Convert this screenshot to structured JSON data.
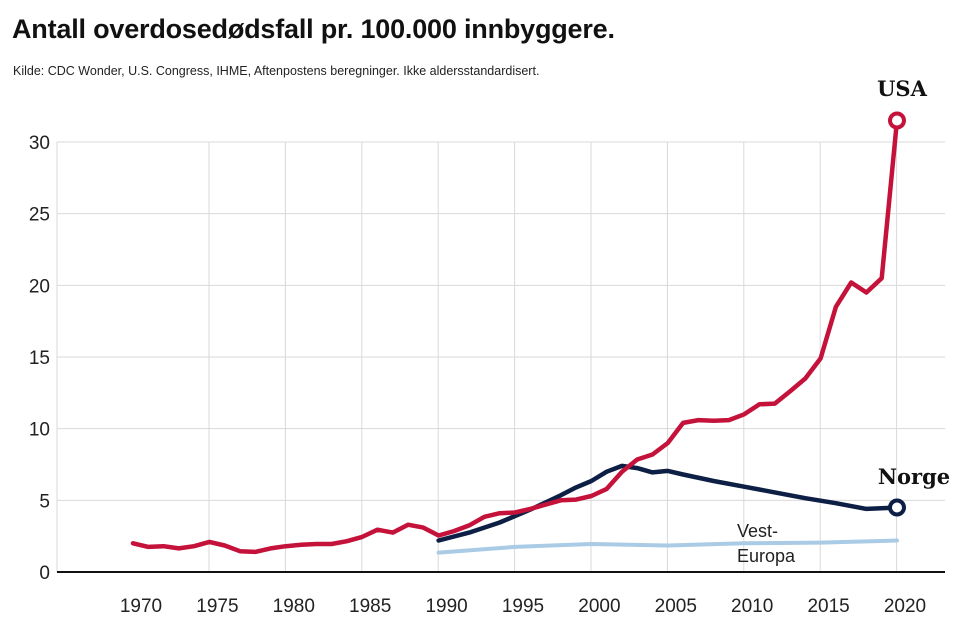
{
  "title": "Antall overdosedødsfall pr. 100.000 innbyggere.",
  "subtitle": "Kilde: CDC Wonder, U.S. Congress, IHME, Aftenpostens beregninger. Ikke aldersstandardisert.",
  "colors": {
    "usa": "#c4123a",
    "norge": "#0d1f45",
    "vest_europa": "#a9cbe6",
    "grid": "#d9d9d9",
    "axis": "#111111"
  },
  "chart_data": {
    "type": "line",
    "title": "Antall overdosedødsfall pr. 100.000 innbyggere.",
    "xlabel": "",
    "ylabel": "",
    "xlim": [
      1965,
      2021
    ],
    "ylim": [
      0,
      32
    ],
    "x_ticks": [
      1970,
      1975,
      1980,
      1985,
      1990,
      1995,
      2000,
      2005,
      2010,
      2015,
      2020
    ],
    "y_ticks": [
      0,
      5,
      10,
      15,
      20,
      25,
      30
    ],
    "grid": true,
    "series": [
      {
        "name": "USA",
        "color": "#c4123a",
        "x": [
          1970,
          1971,
          1972,
          1973,
          1974,
          1975,
          1976,
          1977,
          1978,
          1979,
          1980,
          1981,
          1982,
          1983,
          1984,
          1985,
          1986,
          1987,
          1988,
          1989,
          1990,
          1991,
          1992,
          1993,
          1994,
          1995,
          1996,
          1997,
          1998,
          1999,
          2000,
          2001,
          2002,
          2003,
          2004,
          2005,
          2006,
          2007,
          2008,
          2009,
          2010,
          2011,
          2012,
          2013,
          2014,
          2015,
          2016,
          2017,
          2018,
          2019,
          2020
        ],
        "values": [
          2.0,
          1.75,
          1.8,
          1.65,
          1.8,
          2.1,
          1.85,
          1.45,
          1.4,
          1.65,
          1.8,
          1.9,
          1.95,
          1.95,
          2.15,
          2.45,
          2.95,
          2.75,
          3.3,
          3.1,
          2.55,
          2.85,
          3.25,
          3.85,
          4.1,
          4.15,
          4.4,
          4.7,
          5.0,
          5.05,
          5.3,
          5.8,
          7.0,
          7.85,
          8.2,
          9.0,
          10.4,
          10.6,
          10.55,
          10.6,
          11.0,
          11.7,
          11.75,
          12.6,
          13.5,
          14.9,
          18.5,
          20.2,
          19.5,
          20.5,
          31.5
        ]
      },
      {
        "name": "Norge",
        "color": "#0d1f45",
        "x": [
          1990,
          1992,
          1994,
          1996,
          1998,
          1999,
          2000,
          2001,
          2002,
          2003,
          2004,
          2005,
          2006,
          2008,
          2010,
          2012,
          2014,
          2016,
          2018,
          2020
        ],
        "values": [
          2.2,
          2.75,
          3.45,
          4.35,
          5.35,
          5.9,
          6.35,
          7.0,
          7.4,
          7.25,
          6.95,
          7.05,
          6.8,
          6.35,
          5.95,
          5.55,
          5.15,
          4.8,
          4.4,
          4.5
        ]
      },
      {
        "name": "Vest-\nEuropa",
        "color": "#a9cbe6",
        "x": [
          1990,
          1995,
          2000,
          2005,
          2010,
          2015,
          2020
        ],
        "values": [
          1.35,
          1.75,
          1.95,
          1.85,
          2.0,
          2.05,
          2.2
        ]
      }
    ],
    "end_markers": [
      "USA",
      "Norge"
    ],
    "labels": {
      "usa": "USA",
      "norge": "Norge",
      "vest_europa_line1": "Vest-",
      "vest_europa_line2": "Europa"
    }
  }
}
